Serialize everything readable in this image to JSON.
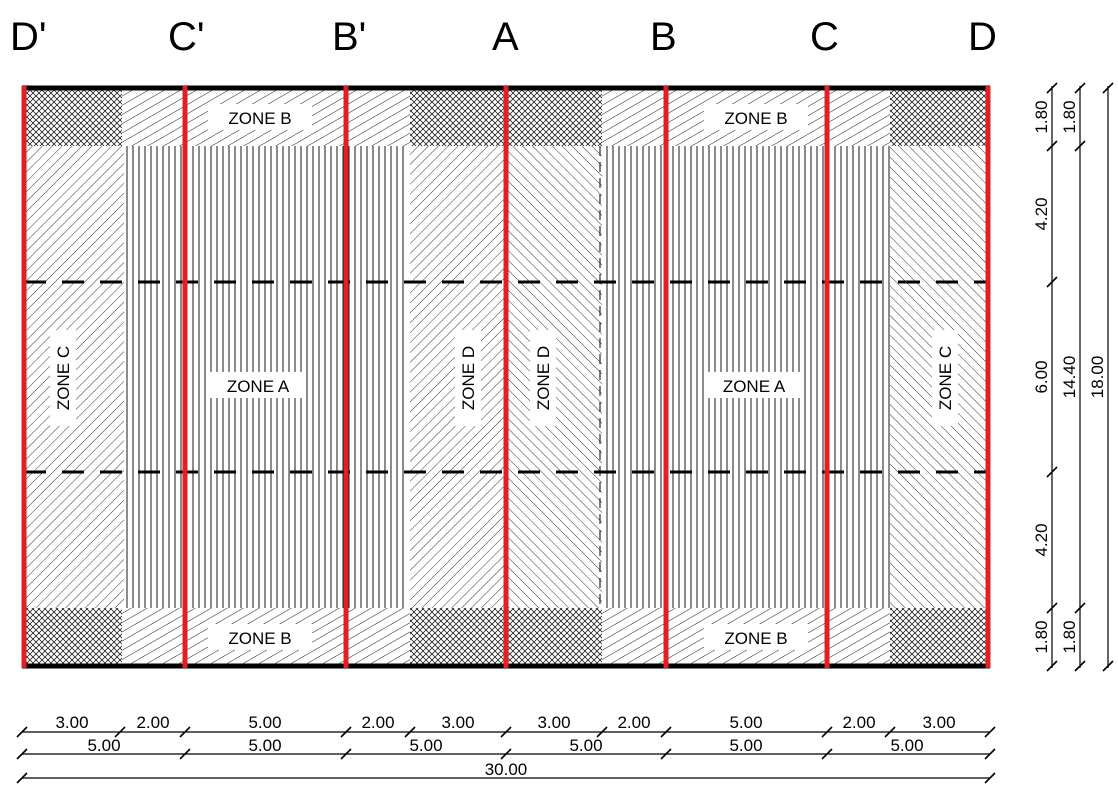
{
  "axes": [
    "D'",
    "C'",
    "B'",
    "A",
    "B",
    "C",
    "D"
  ],
  "zones": {
    "b_top_left": "ZONE B",
    "b_top_right": "ZONE B",
    "b_bottom_left": "ZONE B",
    "b_bottom_right": "ZONE B",
    "a_left": "ZONE A",
    "a_right": "ZONE A",
    "c_left": "ZONE C",
    "c_right": "ZONE C",
    "d_left": "ZONE D",
    "d_right": "ZONE D"
  },
  "dimensions": {
    "bottom_row1": [
      "3.00",
      "2.00",
      "5.00",
      "2.00",
      "3.00",
      "3.00",
      "2.00",
      "5.00",
      "2.00",
      "3.00"
    ],
    "bottom_row2": [
      "5.00",
      "5.00",
      "5.00",
      "5.00",
      "5.00",
      "5.00"
    ],
    "bottom_total": "30.00",
    "right_col1": [
      "1.80",
      "4.20",
      "6.00",
      "4.20",
      "1.80"
    ],
    "right_col2": [
      "1.80",
      "14.40",
      "1.80"
    ],
    "right_total": "18.00"
  },
  "colors": {
    "axis_line": "#e31e24",
    "outline": "#000000",
    "background": "#ffffff"
  }
}
